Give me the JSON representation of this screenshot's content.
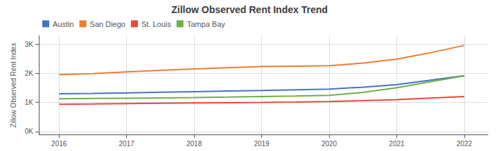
{
  "chart_data": {
    "type": "line",
    "title": "Zillow Observed Rent Index Trend",
    "ylabel": "Zillow Observed Rent Index",
    "x": [
      2016,
      2016.5,
      2017,
      2017.5,
      2018,
      2018.5,
      2019,
      2019.5,
      2020,
      2020.5,
      2021,
      2021.5,
      2022
    ],
    "series": [
      {
        "name": "Austin",
        "color": "#4472C4",
        "values": [
          1300,
          1315,
          1335,
          1355,
          1375,
          1395,
          1415,
          1440,
          1465,
          1530,
          1620,
          1775,
          1930
        ]
      },
      {
        "name": "San Diego",
        "color": "#ED7D31",
        "values": [
          1960,
          2000,
          2060,
          2110,
          2160,
          2200,
          2240,
          2255,
          2270,
          2360,
          2500,
          2720,
          2970
        ]
      },
      {
        "name": "St. Louis",
        "color": "#E8483A",
        "values": [
          940,
          950,
          965,
          975,
          985,
          995,
          1005,
          1018,
          1038,
          1065,
          1100,
          1155,
          1210
        ]
      },
      {
        "name": "Tampa Bay",
        "color": "#70AD47",
        "values": [
          1130,
          1140,
          1150,
          1160,
          1172,
          1188,
          1208,
          1225,
          1250,
          1350,
          1510,
          1720,
          1920
        ]
      }
    ],
    "xlim": [
      2015.7,
      2022.35
    ],
    "xticks": [
      2016,
      2017,
      2018,
      2019,
      2020,
      2021,
      2022
    ],
    "ylim": [
      -100,
      3300
    ],
    "yticks": [
      {
        "value": 0,
        "label": "0K"
      },
      {
        "value": 1000,
        "label": "1K"
      },
      {
        "value": 2000,
        "label": "2K"
      },
      {
        "value": 3000,
        "label": "3K"
      }
    ],
    "grid": true,
    "legend": "upper left"
  }
}
